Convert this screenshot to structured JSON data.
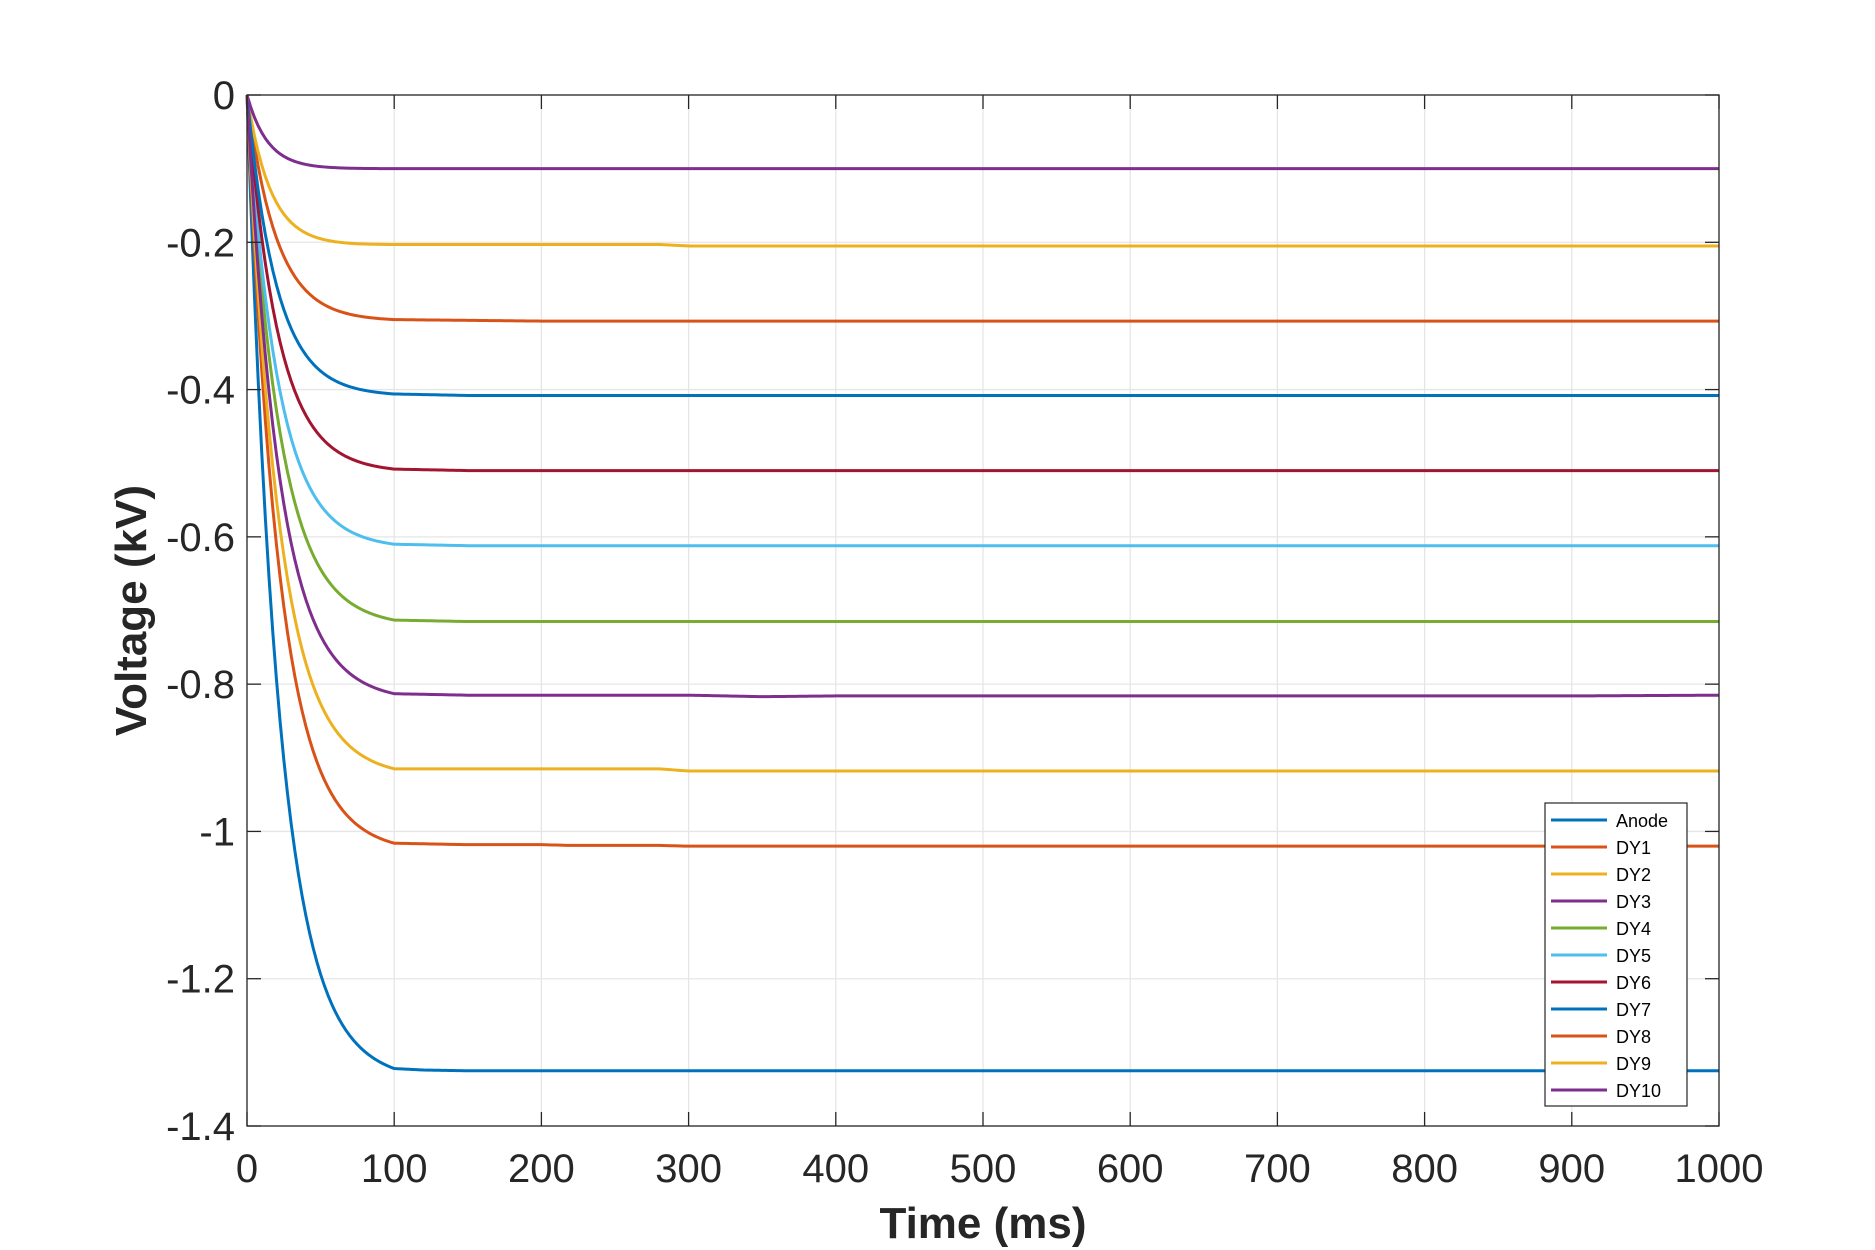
{
  "chart_data": {
    "type": "line",
    "title": "",
    "xlabel": "Time (ms)",
    "ylabel": "Voltage (kV)",
    "xlim": [
      0,
      1000
    ],
    "ylim": [
      -1.4,
      0
    ],
    "xticks": [
      0,
      100,
      200,
      300,
      400,
      500,
      600,
      700,
      800,
      900,
      1000
    ],
    "yticks": [
      0,
      -0.2,
      -0.4,
      -0.6,
      -0.8,
      -1,
      -1.2,
      -1.4
    ],
    "xtick_labels": [
      "0",
      "100",
      "200",
      "300",
      "400",
      "500",
      "600",
      "700",
      "800",
      "900",
      "1000"
    ],
    "ytick_labels": [
      "0",
      "-0.2",
      "-0.4",
      "-0.6",
      "-0.8",
      "-1",
      "-1.2",
      "-1.4"
    ],
    "grid": true,
    "legend_position": "bottom-right",
    "series": [
      {
        "name": "Anode",
        "color": "#0072BD",
        "final": -1.325,
        "tau": 22,
        "x": [
          0,
          10,
          20,
          30,
          40,
          50,
          60,
          70,
          80,
          90,
          100,
          120,
          150,
          200,
          300,
          400,
          500,
          600,
          700,
          800,
          900,
          1000
        ],
        "y": [
          0,
          -0.488,
          -0.801,
          -0.998,
          -1.124,
          -1.203,
          -1.253,
          -1.285,
          -1.305,
          -1.317,
          -1.322,
          -1.324,
          -1.325,
          -1.325,
          -1.325,
          -1.325,
          -1.325,
          -1.325,
          -1.325,
          -1.325,
          -1.325,
          -1.325
        ]
      },
      {
        "name": "DY1",
        "color": "#D95319",
        "final": -0.307,
        "tau": 20,
        "x": [
          0,
          10,
          20,
          30,
          40,
          50,
          60,
          70,
          80,
          90,
          100,
          150,
          200,
          300,
          400,
          500,
          600,
          700,
          800,
          900,
          1000
        ],
        "y": [
          0,
          -0.121,
          -0.194,
          -0.238,
          -0.265,
          -0.281,
          -0.291,
          -0.297,
          -0.301,
          -0.303,
          -0.305,
          -0.306,
          -0.307,
          -0.307,
          -0.307,
          -0.307,
          -0.307,
          -0.307,
          -0.307,
          -0.307,
          -0.307
        ]
      },
      {
        "name": "DY2",
        "color": "#EDB120",
        "final": -0.205,
        "tau": 16,
        "x": [
          0,
          10,
          20,
          30,
          40,
          50,
          60,
          70,
          80,
          90,
          100,
          150,
          200,
          280,
          300,
          400,
          500,
          600,
          700,
          800,
          900,
          1000
        ],
        "y": [
          0,
          -0.095,
          -0.146,
          -0.173,
          -0.187,
          -0.195,
          -0.199,
          -0.201,
          -0.202,
          -0.203,
          -0.203,
          -0.203,
          -0.203,
          -0.203,
          -0.205,
          -0.205,
          -0.205,
          -0.205,
          -0.205,
          -0.205,
          -0.205,
          -0.205
        ]
      },
      {
        "name": "DY3",
        "color": "#7E2F8E",
        "final": -0.1,
        "tau": 14,
        "x": [
          0,
          10,
          20,
          30,
          40,
          50,
          60,
          70,
          80,
          100,
          200,
          300,
          400,
          500,
          600,
          700,
          800,
          900,
          1000
        ],
        "y": [
          0,
          -0.051,
          -0.076,
          -0.088,
          -0.094,
          -0.097,
          -0.098,
          -0.1,
          -0.1,
          -0.1,
          -0.1,
          -0.1,
          -0.1,
          -0.1,
          -0.1,
          -0.1,
          -0.1,
          -0.1,
          -0.1
        ]
      },
      {
        "name": "DY4",
        "color": "#77AC30",
        "final": -0.715,
        "tau": 22,
        "x": [
          0,
          10,
          20,
          30,
          40,
          50,
          60,
          70,
          80,
          90,
          100,
          150,
          200,
          300,
          400,
          500,
          600,
          700,
          800,
          900,
          1000
        ],
        "y": [
          0,
          -0.263,
          -0.432,
          -0.539,
          -0.606,
          -0.649,
          -0.676,
          -0.693,
          -0.704,
          -0.71,
          -0.713,
          -0.715,
          -0.715,
          -0.715,
          -0.715,
          -0.715,
          -0.715,
          -0.715,
          -0.715,
          -0.715,
          -0.715
        ]
      },
      {
        "name": "DY5",
        "color": "#4DBEEE",
        "final": -0.612,
        "tau": 21,
        "x": [
          0,
          10,
          20,
          30,
          40,
          50,
          60,
          70,
          80,
          90,
          100,
          150,
          200,
          300,
          400,
          500,
          600,
          700,
          800,
          900,
          1000
        ],
        "y": [
          0,
          -0.232,
          -0.377,
          -0.467,
          -0.523,
          -0.558,
          -0.579,
          -0.592,
          -0.601,
          -0.606,
          -0.61,
          -0.612,
          -0.612,
          -0.612,
          -0.612,
          -0.612,
          -0.612,
          -0.612,
          -0.612,
          -0.612,
          -0.612
        ]
      },
      {
        "name": "DY6",
        "color": "#A2142F",
        "final": -0.51,
        "tau": 21,
        "x": [
          0,
          10,
          20,
          30,
          40,
          50,
          60,
          70,
          80,
          90,
          100,
          150,
          200,
          300,
          400,
          500,
          600,
          700,
          800,
          900,
          1000
        ],
        "y": [
          0,
          -0.193,
          -0.314,
          -0.389,
          -0.436,
          -0.465,
          -0.483,
          -0.494,
          -0.5,
          -0.505,
          -0.508,
          -0.51,
          -0.51,
          -0.51,
          -0.51,
          -0.51,
          -0.51,
          -0.51,
          -0.51,
          -0.51,
          -0.51
        ]
      },
      {
        "name": "DY7",
        "color": "#0072BD",
        "final": -0.408,
        "tau": 20,
        "x": [
          0,
          10,
          20,
          30,
          40,
          50,
          60,
          70,
          80,
          90,
          100,
          150,
          200,
          300,
          400,
          500,
          600,
          700,
          800,
          900,
          1000
        ],
        "y": [
          0,
          -0.161,
          -0.258,
          -0.317,
          -0.352,
          -0.374,
          -0.387,
          -0.395,
          -0.4,
          -0.403,
          -0.406,
          -0.408,
          -0.408,
          -0.408,
          -0.408,
          -0.408,
          -0.408,
          -0.408,
          -0.408,
          -0.408,
          -0.408
        ]
      },
      {
        "name": "DY8",
        "color": "#D95319",
        "final": -1.02,
        "tau": 22,
        "x": [
          0,
          10,
          20,
          30,
          40,
          50,
          60,
          70,
          80,
          90,
          100,
          150,
          200,
          220,
          250,
          280,
          300,
          400,
          500,
          600,
          700,
          800,
          900,
          1000
        ],
        "y": [
          0,
          -0.375,
          -0.616,
          -0.768,
          -0.865,
          -0.926,
          -0.964,
          -0.989,
          -1.004,
          -1.012,
          -1.016,
          -1.018,
          -1.018,
          -1.019,
          -1.019,
          -1.019,
          -1.02,
          -1.02,
          -1.02,
          -1.02,
          -1.02,
          -1.02,
          -1.02,
          -1.02
        ]
      },
      {
        "name": "DY9",
        "color": "#EDB120",
        "final": -0.918,
        "tau": 22,
        "x": [
          0,
          10,
          20,
          30,
          40,
          50,
          60,
          70,
          80,
          90,
          100,
          150,
          200,
          280,
          300,
          400,
          500,
          600,
          700,
          800,
          900,
          1000
        ],
        "y": [
          0,
          -0.338,
          -0.554,
          -0.692,
          -0.779,
          -0.834,
          -0.868,
          -0.89,
          -0.904,
          -0.912,
          -0.915,
          -0.915,
          -0.915,
          -0.915,
          -0.918,
          -0.918,
          -0.918,
          -0.918,
          -0.918,
          -0.918,
          -0.918,
          -0.918
        ]
      },
      {
        "name": "DY10",
        "color": "#7E2F8E",
        "final": -0.815,
        "tau": 22,
        "x": [
          0,
          10,
          20,
          30,
          40,
          50,
          60,
          70,
          80,
          90,
          100,
          150,
          200,
          300,
          350,
          400,
          500,
          600,
          700,
          800,
          900,
          1000
        ],
        "y": [
          0,
          -0.3,
          -0.492,
          -0.614,
          -0.692,
          -0.741,
          -0.772,
          -0.791,
          -0.803,
          -0.81,
          -0.813,
          -0.815,
          -0.815,
          -0.815,
          -0.817,
          -0.816,
          -0.816,
          -0.816,
          -0.816,
          -0.816,
          -0.816,
          -0.815
        ]
      }
    ]
  }
}
